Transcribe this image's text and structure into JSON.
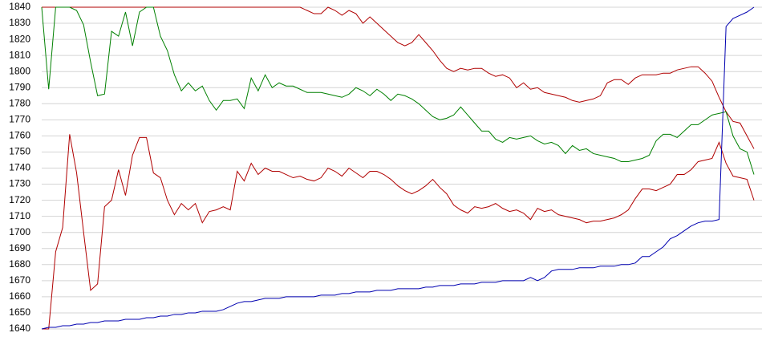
{
  "chart_data": {
    "type": "line",
    "ylim": [
      1640,
      1840
    ],
    "yticks": [
      1640,
      1650,
      1660,
      1670,
      1680,
      1690,
      1700,
      1710,
      1720,
      1730,
      1740,
      1750,
      1760,
      1770,
      1780,
      1790,
      1800,
      1810,
      1820,
      1830,
      1840
    ],
    "grid": true,
    "series": [
      {
        "color": "#b00000",
        "values": [
          1840,
          1840,
          1840,
          1840,
          1840,
          1840,
          1840,
          1840,
          1840,
          1840,
          1840,
          1840,
          1840,
          1840,
          1840,
          1840,
          1840,
          1840,
          1840,
          1840,
          1840,
          1840,
          1840,
          1840,
          1840,
          1840,
          1840,
          1840,
          1840,
          1840,
          1840,
          1840,
          1840,
          1840,
          1840,
          1840,
          1840,
          1840,
          1838,
          1836,
          1836,
          1840,
          1838,
          1835,
          1838,
          1836,
          1830,
          1834,
          1830,
          1826,
          1822,
          1818,
          1816,
          1818,
          1823,
          1818,
          1813,
          1807,
          1802,
          1800,
          1802,
          1801,
          1802,
          1802,
          1799,
          1797,
          1798,
          1796,
          1790,
          1793,
          1789,
          1790,
          1787,
          1786,
          1785,
          1784,
          1782,
          1781,
          1782,
          1783,
          1785,
          1793,
          1795,
          1795,
          1792,
          1796,
          1798,
          1798,
          1798,
          1799,
          1799,
          1801,
          1802,
          1803,
          1803,
          1799,
          1794,
          1784,
          1775,
          1769,
          1768,
          1760,
          1752
        ]
      },
      {
        "color": "#008000",
        "values": [
          1840,
          1789,
          1840,
          1840,
          1840,
          1838,
          1829,
          1806,
          1785,
          1786,
          1825,
          1822,
          1837,
          1816,
          1837,
          1840,
          1840,
          1822,
          1813,
          1798,
          1788,
          1793,
          1788,
          1791,
          1782,
          1776,
          1782,
          1782,
          1783,
          1777,
          1796,
          1788,
          1798,
          1790,
          1793,
          1791,
          1791,
          1789,
          1787,
          1787,
          1787,
          1786,
          1785,
          1784,
          1786,
          1790,
          1788,
          1785,
          1789,
          1786,
          1782,
          1786,
          1785,
          1783,
          1780,
          1776,
          1772,
          1770,
          1771,
          1773,
          1778,
          1773,
          1768,
          1763,
          1763,
          1758,
          1756,
          1759,
          1758,
          1759,
          1760,
          1757,
          1755,
          1756,
          1754,
          1749,
          1754,
          1751,
          1752,
          1749,
          1748,
          1747,
          1746,
          1744,
          1744,
          1745,
          1746,
          1748,
          1757,
          1761,
          1761,
          1759,
          1763,
          1767,
          1767,
          1770,
          1773,
          1774,
          1775,
          1760,
          1752,
          1750,
          1736
        ]
      },
      {
        "color": "#b00000",
        "values": [
          1640,
          1640,
          1688,
          1703,
          1761,
          1737,
          1700,
          1664,
          1668,
          1716,
          1720,
          1739,
          1723,
          1748,
          1759,
          1759,
          1737,
          1734,
          1720,
          1711,
          1718,
          1714,
          1718,
          1706,
          1713,
          1714,
          1716,
          1714,
          1738,
          1732,
          1743,
          1736,
          1740,
          1738,
          1738,
          1736,
          1734,
          1735,
          1733,
          1732,
          1734,
          1740,
          1738,
          1735,
          1740,
          1737,
          1734,
          1738,
          1738,
          1736,
          1733,
          1729,
          1726,
          1724,
          1726,
          1729,
          1733,
          1728,
          1724,
          1717,
          1714,
          1712,
          1716,
          1715,
          1716,
          1718,
          1715,
          1713,
          1714,
          1712,
          1708,
          1715,
          1713,
          1714,
          1711,
          1710,
          1709,
          1708,
          1706,
          1707,
          1707,
          1708,
          1709,
          1711,
          1714,
          1721,
          1727,
          1727,
          1726,
          1728,
          1730,
          1736,
          1736,
          1739,
          1744,
          1745,
          1746,
          1756,
          1743,
          1735,
          1734,
          1733,
          1720
        ]
      },
      {
        "color": "#0000b0",
        "values": [
          1640,
          1641,
          1641,
          1642,
          1642,
          1643,
          1643,
          1644,
          1644,
          1645,
          1645,
          1645,
          1646,
          1646,
          1646,
          1647,
          1647,
          1648,
          1648,
          1649,
          1649,
          1650,
          1650,
          1651,
          1651,
          1651,
          1652,
          1654,
          1656,
          1657,
          1657,
          1658,
          1659,
          1659,
          1659,
          1660,
          1660,
          1660,
          1660,
          1660,
          1661,
          1661,
          1661,
          1662,
          1662,
          1663,
          1663,
          1663,
          1664,
          1664,
          1664,
          1665,
          1665,
          1665,
          1665,
          1666,
          1666,
          1667,
          1667,
          1667,
          1668,
          1668,
          1668,
          1669,
          1669,
          1669,
          1670,
          1670,
          1670,
          1670,
          1672,
          1670,
          1672,
          1676,
          1677,
          1677,
          1677,
          1678,
          1678,
          1678,
          1679,
          1679,
          1679,
          1680,
          1680,
          1681,
          1685,
          1685,
          1688,
          1691,
          1696,
          1698,
          1701,
          1704,
          1706,
          1707,
          1707,
          1708,
          1828,
          1833,
          1835,
          1837,
          1840
        ]
      }
    ]
  }
}
